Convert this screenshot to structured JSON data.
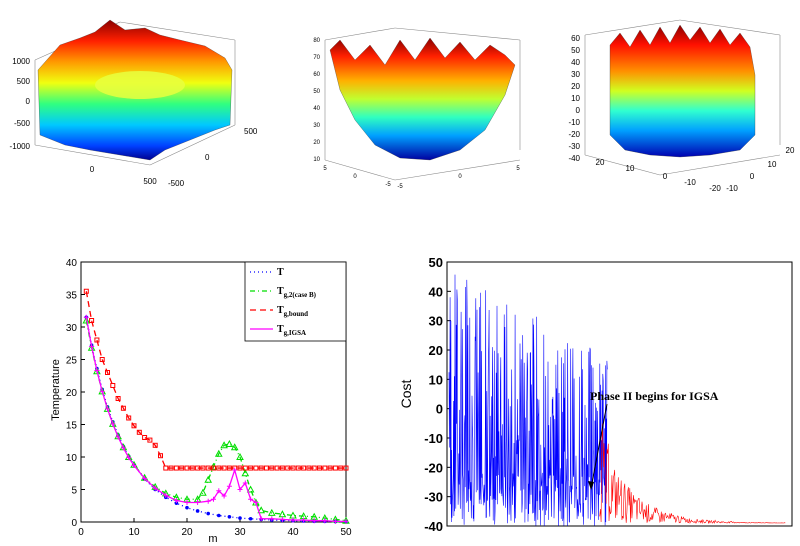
{
  "colors": {
    "t_blue": "#0000ff",
    "tg2_green": "#00dd00",
    "tgbound_red": "#ff0000",
    "tgigsa_magenta": "#ff00ff",
    "cost_blue": "#0000ff",
    "cost_red": "#ff0000",
    "surface_colormap": "jet"
  },
  "surfaces": [
    {
      "zticks": [
        "1000",
        "500",
        "0",
        "-500",
        "-1000"
      ],
      "xticks": [
        "0",
        "500"
      ],
      "yticks": [
        "-500",
        "0",
        "500"
      ]
    },
    {
      "zticks": [
        "80",
        "70",
        "60",
        "50",
        "40",
        "30",
        "20",
        "10"
      ],
      "xticks": [
        "5",
        "0",
        "-5"
      ],
      "yticks": [
        "5",
        "0",
        "-5"
      ]
    },
    {
      "zticks": [
        "60",
        "50",
        "40",
        "30",
        "20",
        "10",
        "0",
        "-10",
        "-20",
        "-30",
        "-40"
      ],
      "xticks": [
        "20",
        "10",
        "0",
        "-10",
        "-20"
      ],
      "yticks": [
        "20",
        "10",
        "0",
        "-10",
        "-20"
      ]
    }
  ],
  "chart_data": [
    {
      "type": "line",
      "xlabel": "m",
      "ylabel": "Temperature",
      "xlim": [
        0,
        50
      ],
      "ylim": [
        0,
        40
      ],
      "xticks": [
        0,
        10,
        20,
        30,
        40,
        50
      ],
      "yticks": [
        0,
        5,
        10,
        15,
        20,
        25,
        30,
        35,
        40
      ],
      "legend_position": "top-right",
      "series": [
        {
          "name": "T",
          "style": "dotted-circles",
          "x": [
            1,
            2,
            3,
            4,
            5,
            6,
            7,
            8,
            9,
            10,
            12,
            14,
            16,
            18,
            20,
            22,
            24,
            26,
            28,
            30,
            32,
            34,
            36,
            38,
            40,
            42,
            44,
            46,
            48,
            50
          ],
          "y": [
            31.5,
            27.2,
            23.6,
            20.4,
            17.7,
            15.4,
            13.4,
            11.6,
            10.1,
            8.8,
            6.6,
            5.0,
            3.8,
            2.9,
            2.2,
            1.7,
            1.3,
            1.0,
            0.8,
            0.6,
            0.5,
            0.4,
            0.3,
            0.25,
            0.2,
            0.15,
            0.12,
            0.1,
            0.08,
            0.06
          ]
        },
        {
          "name": "Tg,2(case B)",
          "style": "dashdot-triangles",
          "x": [
            1,
            2,
            3,
            4,
            5,
            6,
            7,
            8,
            9,
            10,
            12,
            14,
            16,
            18,
            20,
            22,
            23,
            24,
            25,
            26,
            27,
            28,
            29,
            30,
            31,
            32,
            33,
            34,
            36,
            38,
            40,
            42,
            44,
            46,
            48,
            50
          ],
          "y": [
            31,
            26.8,
            23.2,
            20.1,
            17.4,
            15.1,
            13.2,
            11.5,
            10.0,
            8.8,
            6.8,
            5.4,
            4.4,
            3.8,
            3.5,
            3.5,
            4.5,
            6.5,
            8.5,
            10.5,
            11.8,
            12.0,
            11.5,
            10.0,
            7.5,
            5.0,
            3.0,
            1.8,
            1.4,
            1.2,
            1.0,
            0.9,
            0.8,
            0.6,
            0.4,
            0.2
          ]
        },
        {
          "name": "Tg,bound",
          "style": "dashed-squares",
          "x": [
            1,
            2,
            3,
            4,
            5,
            6,
            7,
            8,
            9,
            10,
            11,
            12,
            13,
            14,
            15,
            16,
            17,
            18,
            19,
            20,
            21,
            22,
            23,
            24,
            25,
            26,
            27,
            28,
            29,
            30,
            31,
            32,
            33,
            34,
            35,
            36,
            37,
            38,
            39,
            40,
            41,
            42,
            43,
            44,
            45,
            46,
            47,
            48,
            49,
            50
          ],
          "y": [
            35.5,
            31,
            28,
            25,
            23,
            21,
            19,
            17.5,
            16,
            14.8,
            13.8,
            13,
            12.6,
            11.8,
            10.2,
            8.3,
            8.3,
            8.3,
            8.3,
            8.3,
            8.3,
            8.3,
            8.3,
            8.3,
            8.3,
            8.3,
            8.3,
            8.3,
            8.3,
            8.3,
            8.3,
            8.3,
            8.3,
            8.3,
            8.3,
            8.3,
            8.3,
            8.3,
            8.3,
            8.3,
            8.3,
            8.3,
            8.3,
            8.3,
            8.3,
            8.3,
            8.3,
            8.3,
            8.3,
            8.3
          ]
        },
        {
          "name": "Tg,IGSA",
          "style": "solid-pluses",
          "x": [
            1,
            2,
            3,
            4,
            5,
            6,
            7,
            8,
            9,
            10,
            12,
            14,
            16,
            18,
            20,
            22,
            24,
            25,
            26,
            27,
            28,
            29,
            30,
            31,
            32,
            33,
            34,
            36,
            38,
            40,
            42,
            44,
            46,
            48,
            50
          ],
          "y": [
            31.5,
            27,
            23.3,
            20.1,
            17.4,
            15.1,
            13.1,
            11.4,
            9.9,
            8.7,
            6.7,
            5.2,
            4.1,
            3.3,
            3.0,
            3.0,
            3.2,
            3.5,
            4.8,
            4.0,
            5.5,
            8.0,
            5.0,
            6.0,
            3.5,
            3.0,
            0.5,
            0.5,
            0.4,
            0.3,
            0.3,
            0.2,
            0.2,
            0.1,
            0.1
          ]
        }
      ]
    },
    {
      "type": "line",
      "xlabel": "",
      "ylabel": "Cost",
      "ylim": [
        -40,
        50
      ],
      "yticks": [
        -40,
        -30,
        -20,
        -10,
        0,
        10,
        20,
        30,
        40,
        50
      ],
      "annotation": "Phase II begins for IGSA",
      "series": [
        {
          "name": "",
          "color_key": "cost_blue",
          "x_range": [
            0,
            0.46
          ],
          "amplitude_max": 48
        },
        {
          "name": "",
          "color_key": "cost_red",
          "x_range": [
            0.46,
            1.0
          ],
          "amplitude_max": -8
        }
      ]
    }
  ]
}
